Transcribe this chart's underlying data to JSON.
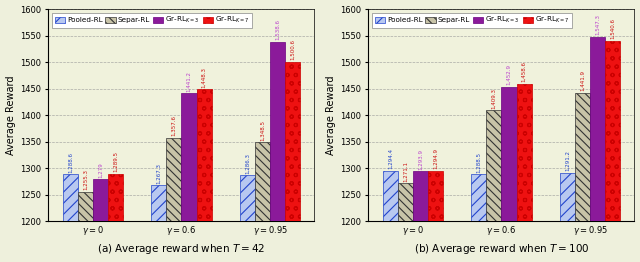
{
  "left": {
    "title": "(a) Average reward when $T = 42$",
    "groups": [
      "γ = 0",
      "γ = 0.6",
      "γ = 0.95"
    ],
    "values": {
      "Pooled": [
        1288.6,
        1267.3,
        1286.3
      ],
      "Separ": [
        1255.3,
        1357.6,
        1348.5
      ],
      "GrK3": [
        1279.0,
        1441.2,
        1538.6
      ],
      "GrK7": [
        1289.5,
        1448.3,
        1500.6
      ]
    },
    "labels": {
      "Pooled": [
        "1,288.6",
        "1,267.3",
        "1,286.3"
      ],
      "Separ": [
        "1,255.3",
        "1,357.6",
        "1,348.5"
      ],
      "GrK3": [
        "1,279",
        "1,441.2",
        "1,538.6"
      ],
      "GrK7": [
        "1,289.5",
        "1,448.3",
        "1,500.6"
      ]
    },
    "ylim": [
      1200,
      1600
    ],
    "yticks": [
      1200,
      1250,
      1300,
      1350,
      1400,
      1450,
      1500,
      1550,
      1600
    ]
  },
  "right": {
    "title": "(b) Average reward when $T = 100$",
    "groups": [
      "γ = 0",
      "γ = 0.6",
      "γ = 0.95"
    ],
    "values": {
      "Pooled": [
        1294.4,
        1288.5,
        1291.2
      ],
      "Separ": [
        1271.1,
        1409.3,
        1441.9
      ],
      "GrK3": [
        1293.9,
        1452.9,
        1547.3
      ],
      "GrK7": [
        1294.9,
        1458.6,
        1540.6
      ]
    },
    "labels": {
      "Pooled": [
        "1,294.4",
        "1,288.5",
        "1,291.2"
      ],
      "Separ": [
        "1,271.1",
        "1,409.3",
        "1,441.9"
      ],
      "GrK3": [
        "1,293.9",
        "1,452.9",
        "1,547.3"
      ],
      "GrK7": [
        "1,294.9",
        "1,458.6",
        "1,540.6"
      ]
    },
    "ylim": [
      1200,
      1600
    ],
    "yticks": [
      1200,
      1250,
      1300,
      1350,
      1400,
      1450,
      1500,
      1550,
      1600
    ]
  },
  "bar_facecolors": {
    "Pooled": "#B8C8F0",
    "Separ": "#C8C4A8",
    "GrK3": "#8B1A9A",
    "GrK7": "#EE1111"
  },
  "bar_edgecolors": {
    "Pooled": "#2244CC",
    "Separ": "#333333",
    "GrK3": "#6B0080",
    "GrK7": "#CC0000"
  },
  "hatches": {
    "Pooled": "///",
    "Separ": "\\\\\\\\",
    "GrK3": "",
    "GrK7": "oo"
  },
  "hatch_colors": {
    "Pooled": "#2244CC",
    "Separ": "#444444",
    "GrK3": "#8B1A9A",
    "GrK7": "#FFFFFF"
  },
  "label_colors": {
    "Pooled": "#2244CC",
    "Separ": "#CC1111",
    "GrK3": "#BB44CC",
    "GrK7": "#CC1111"
  },
  "legend_labels": [
    "Pooled-RL",
    "Separ-RL",
    "Gr-RL$_{K=3}$",
    "Gr-RL$_{K=7}$"
  ],
  "ylabel": "Average Reward",
  "bg_color": "#EEF0DC",
  "plot_bg": "#F0F2DC",
  "bar_width": 0.17,
  "label_fontsize": 4.0,
  "tick_fontsize": 6.0,
  "ylabel_fontsize": 7.0,
  "xlabel_fontsize": 7.5,
  "legend_fontsize": 5.2
}
